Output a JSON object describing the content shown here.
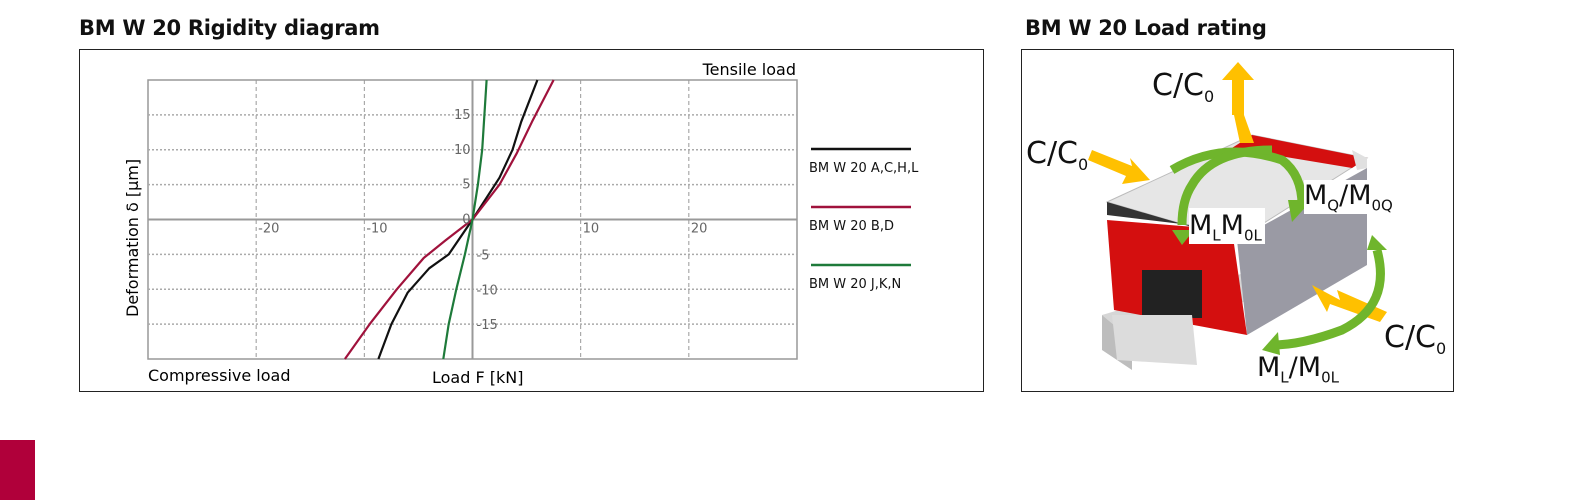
{
  "chart_data": {
    "type": "line",
    "title": "BM W 20 Rigidity diagram",
    "xlabel": "Load F [kN]",
    "ylabel": "Deformation δ [µm]",
    "annotations": {
      "top_right": "Tensile load",
      "bottom_left": "Compressive load"
    },
    "xlim": [
      -30,
      30
    ],
    "ylim": [
      -20,
      20
    ],
    "x_ticks": [
      -20,
      -10,
      10,
      20
    ],
    "y_ticks": [
      15,
      10,
      5,
      0,
      -5,
      -10,
      -15
    ],
    "grid": true,
    "legend_position": "right",
    "series": [
      {
        "name": "BM W 20 A,C,H,L",
        "color": "#111111",
        "points": [
          [
            -8.7,
            -20
          ],
          [
            -7.5,
            -15
          ],
          [
            -6,
            -10.5
          ],
          [
            -4,
            -7
          ],
          [
            -2.2,
            -5
          ],
          [
            0,
            0
          ],
          [
            2.5,
            6
          ],
          [
            3.7,
            10
          ],
          [
            4.5,
            14
          ],
          [
            6,
            20
          ]
        ]
      },
      {
        "name": "BM W 20 B,D",
        "color": "#a0123c",
        "points": [
          [
            -11.8,
            -20
          ],
          [
            -9.5,
            -15
          ],
          [
            -7,
            -10
          ],
          [
            -4.5,
            -5.5
          ],
          [
            -2.5,
            -3
          ],
          [
            0,
            0
          ],
          [
            2.5,
            5
          ],
          [
            4.1,
            9.5
          ],
          [
            5.5,
            14
          ],
          [
            7.5,
            20
          ]
        ]
      },
      {
        "name": "BM W 20 J,K,N",
        "color": "#1e7a3a",
        "points": [
          [
            -2.7,
            -20
          ],
          [
            -2.2,
            -15
          ],
          [
            -1.5,
            -10
          ],
          [
            -0.7,
            -5
          ],
          [
            0,
            0
          ],
          [
            0.5,
            5
          ],
          [
            0.9,
            10
          ],
          [
            1.1,
            15
          ],
          [
            1.3,
            20
          ]
        ]
      }
    ]
  },
  "load_rating": {
    "title": "BM W 20 Load rating",
    "labels": [
      {
        "main": "C/C",
        "sub": "0"
      },
      {
        "main": "C/C",
        "sub": "0"
      },
      {
        "main": "C/C",
        "sub": "0"
      },
      {
        "m1": "M",
        "s1": "Q",
        "sep": "/",
        "m2": "M",
        "s2": "0Q"
      },
      {
        "m1": "M",
        "s1": "L",
        "sep": "",
        "m2": "M",
        "s2": "0L"
      },
      {
        "m1": "M",
        "s1": "L",
        "sep": "/",
        "m2": "M",
        "s2": "0L"
      }
    ],
    "colors": {
      "carriage_red": "#d40f0f",
      "arrow_yellow": "#ffc000",
      "arrow_green": "#6fb52c"
    }
  }
}
